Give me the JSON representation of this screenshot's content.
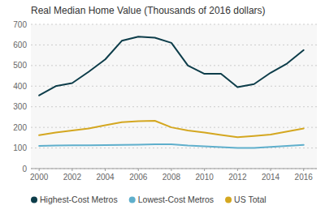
{
  "chart_data": {
    "type": "line",
    "title": "Real Median Home Value (Thousands of 2016 dollars)",
    "x": [
      2000,
      2001,
      2002,
      2003,
      2004,
      2005,
      2006,
      2007,
      2008,
      2009,
      2010,
      2011,
      2012,
      2013,
      2014,
      2015,
      2016
    ],
    "series": [
      {
        "name": "Highest-Cost Metros",
        "color": "#0d3d4a",
        "values": [
          355,
          400,
          415,
          470,
          530,
          620,
          640,
          635,
          610,
          500,
          460,
          460,
          395,
          410,
          465,
          510,
          575
        ]
      },
      {
        "name": "Lowest-Cost Metros",
        "color": "#5fafcc",
        "values": [
          110,
          112,
          113,
          113,
          114,
          115,
          116,
          118,
          118,
          112,
          108,
          104,
          100,
          100,
          105,
          110,
          115
        ]
      },
      {
        "name": "US Total",
        "color": "#d4a720",
        "values": [
          162,
          175,
          185,
          195,
          210,
          225,
          230,
          232,
          200,
          185,
          175,
          163,
          152,
          158,
          165,
          180,
          195
        ]
      }
    ],
    "xlim": [
      1999.5,
      2016.8
    ],
    "xticks": [
      2000,
      2002,
      2004,
      2006,
      2008,
      2010,
      2012,
      2014,
      2016
    ],
    "ylim": [
      0,
      700
    ],
    "yticks": [
      0,
      100,
      200,
      300,
      400,
      500,
      600,
      700
    ],
    "grid": true,
    "legend": "lower left"
  }
}
